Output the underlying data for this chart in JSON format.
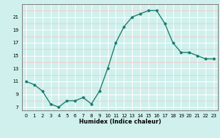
{
  "x": [
    0,
    1,
    2,
    3,
    4,
    5,
    6,
    7,
    8,
    9,
    10,
    11,
    12,
    13,
    14,
    15,
    16,
    17,
    18,
    19,
    20,
    21,
    22,
    23
  ],
  "y": [
    11.0,
    10.5,
    9.5,
    7.5,
    7.0,
    8.0,
    8.0,
    8.5,
    7.5,
    9.5,
    13.0,
    17.0,
    19.5,
    21.0,
    21.5,
    22.0,
    22.0,
    20.0,
    17.0,
    15.5,
    15.5,
    15.0,
    14.5,
    14.5
  ],
  "xlabel": "Humidex (Indice chaleur)",
  "ylabel": "",
  "title": "",
  "line_color": "#1a7a6e",
  "marker_color": "#1a7a6e",
  "bg_color": "#cff0ec",
  "grid_major_color": "#ffffff",
  "grid_minor_color": "#f5c8c8",
  "ylim": [
    6.5,
    23.0
  ],
  "xlim": [
    -0.5,
    23.5
  ],
  "yticks": [
    7,
    9,
    11,
    13,
    15,
    17,
    19,
    21
  ],
  "xticks": [
    0,
    1,
    2,
    3,
    4,
    5,
    6,
    7,
    8,
    9,
    10,
    11,
    12,
    13,
    14,
    15,
    16,
    17,
    18,
    19,
    20,
    21,
    22,
    23
  ],
  "xlabel_fontsize": 6.0,
  "tick_fontsize": 5.0
}
